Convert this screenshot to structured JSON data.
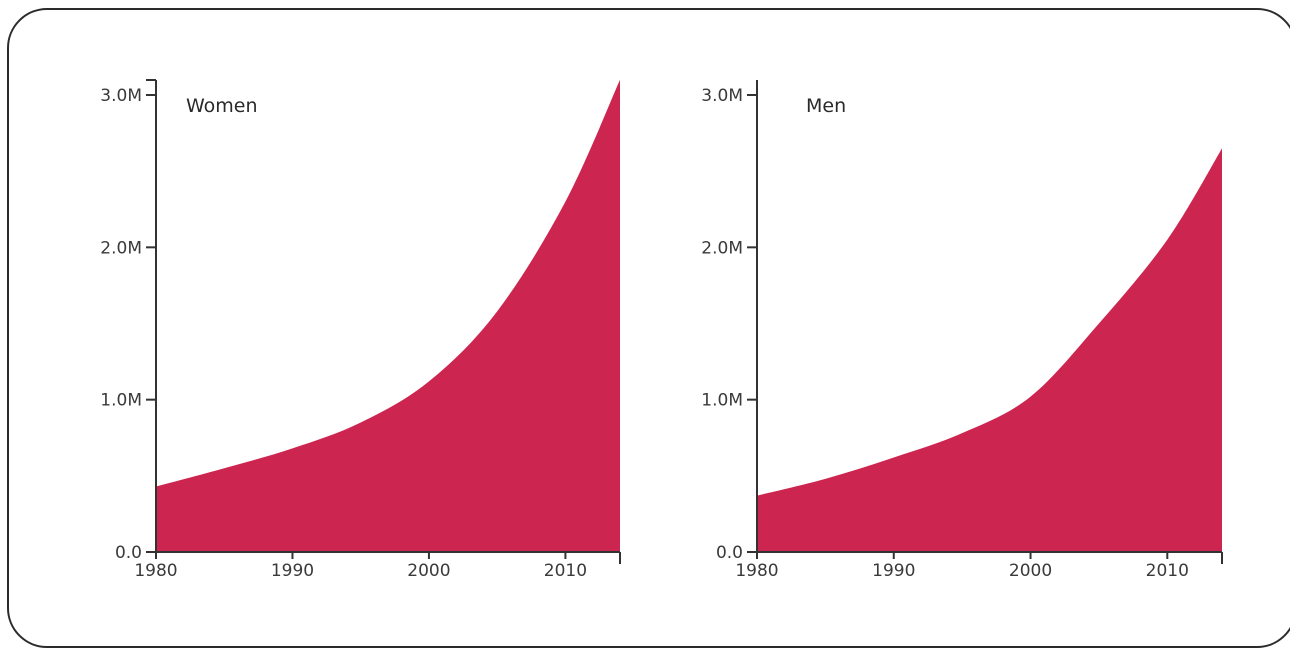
{
  "chart_data": [
    {
      "type": "area",
      "title": "Women",
      "x": [
        1980,
        1985,
        1990,
        1995,
        2000,
        2005,
        2010,
        2014
      ],
      "values": [
        430000,
        550000,
        680000,
        850000,
        1120000,
        1580000,
        2300000,
        3100000
      ],
      "xlim": [
        1980,
        2014
      ],
      "ylim": [
        0,
        3000000
      ],
      "x_ticks": [
        1980,
        1990,
        2000,
        2010
      ],
      "y_ticks": [
        0,
        1000000,
        2000000,
        3000000
      ],
      "x_tick_labels": [
        "1980",
        "1990",
        "2000",
        "2010"
      ],
      "y_tick_labels": [
        "0.0",
        "1.0M",
        "2.0M",
        "3.0M"
      ],
      "color": "#cc2650",
      "grid": false
    },
    {
      "type": "area",
      "title": "Men",
      "x": [
        1980,
        1985,
        1990,
        1995,
        2000,
        2005,
        2010,
        2014
      ],
      "values": [
        370000,
        480000,
        620000,
        780000,
        1020000,
        1500000,
        2050000,
        2650000
      ],
      "xlim": [
        1980,
        2014
      ],
      "ylim": [
        0,
        3000000
      ],
      "x_ticks": [
        1980,
        1990,
        2000,
        2010
      ],
      "y_ticks": [
        0,
        1000000,
        2000000,
        3000000
      ],
      "x_tick_labels": [
        "1980",
        "1990",
        "2000",
        "2010"
      ],
      "y_tick_labels": [
        "0.0",
        "1.0M",
        "2.0M",
        "3.0M"
      ],
      "color": "#cc2650",
      "grid": false
    }
  ]
}
